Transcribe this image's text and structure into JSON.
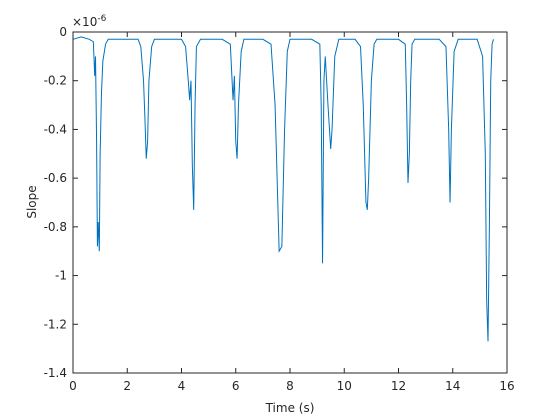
{
  "chart_data": {
    "type": "line",
    "x_label": "Time (s)",
    "y_label": "Slope",
    "y_multiplier": "×10",
    "y_exponent": "-6",
    "color": "#0072bd",
    "xlim": [
      0,
      16
    ],
    "xticks": [
      0,
      2,
      4,
      6,
      8,
      10,
      12,
      14,
      16
    ],
    "ylim": [
      -1.4,
      0
    ],
    "yticks": [
      -1.4,
      -1.2,
      -1,
      -0.8,
      -0.6,
      -0.4,
      -0.2,
      0
    ],
    "x": [
      0,
      0.3,
      0.6,
      0.75,
      0.8,
      0.83,
      0.87,
      0.9,
      0.93,
      0.97,
      1.0,
      1.05,
      1.1,
      1.2,
      1.3,
      1.5,
      2.0,
      2.4,
      2.5,
      2.6,
      2.65,
      2.7,
      2.75,
      2.8,
      2.9,
      3.0,
      3.5,
      4.0,
      4.15,
      4.25,
      4.3,
      4.35,
      4.4,
      4.45,
      4.5,
      4.55,
      4.7,
      5.5,
      5.8,
      5.9,
      5.95,
      6.0,
      6.05,
      6.1,
      6.2,
      6.3,
      7.0,
      7.3,
      7.45,
      7.55,
      7.6,
      7.7,
      7.8,
      7.9,
      8.0,
      8.8,
      9.1,
      9.15,
      9.2,
      9.25,
      9.3,
      9.4,
      9.5,
      9.55,
      9.65,
      9.8,
      10.4,
      10.6,
      10.7,
      10.8,
      10.85,
      10.9,
      11.0,
      11.1,
      11.2,
      12.0,
      12.25,
      12.3,
      12.35,
      12.4,
      12.45,
      12.5,
      12.6,
      13.5,
      13.75,
      13.85,
      13.9,
      13.95,
      14.05,
      14.2,
      14.9,
      15.1,
      15.2,
      15.25,
      15.3,
      15.35,
      15.4,
      15.45,
      15.5
    ],
    "values": [
      -0.03,
      -0.02,
      -0.03,
      -0.04,
      -0.18,
      -0.1,
      -0.45,
      -0.88,
      -0.78,
      -0.9,
      -0.5,
      -0.25,
      -0.12,
      -0.05,
      -0.03,
      -0.03,
      -0.03,
      -0.03,
      -0.06,
      -0.2,
      -0.35,
      -0.52,
      -0.45,
      -0.2,
      -0.06,
      -0.03,
      -0.03,
      -0.03,
      -0.06,
      -0.2,
      -0.28,
      -0.2,
      -0.55,
      -0.73,
      -0.3,
      -0.06,
      -0.03,
      -0.03,
      -0.05,
      -0.28,
      -0.18,
      -0.45,
      -0.52,
      -0.3,
      -0.08,
      -0.03,
      -0.03,
      -0.05,
      -0.3,
      -0.7,
      -0.9,
      -0.88,
      -0.4,
      -0.08,
      -0.03,
      -0.03,
      -0.05,
      -0.3,
      -0.95,
      -0.2,
      -0.1,
      -0.3,
      -0.48,
      -0.4,
      -0.1,
      -0.03,
      -0.03,
      -0.06,
      -0.3,
      -0.7,
      -0.73,
      -0.6,
      -0.2,
      -0.05,
      -0.03,
      -0.03,
      -0.05,
      -0.3,
      -0.62,
      -0.5,
      -0.2,
      -0.05,
      -0.03,
      -0.03,
      -0.06,
      -0.4,
      -0.7,
      -0.4,
      -0.08,
      -0.03,
      -0.03,
      -0.1,
      -0.5,
      -1.1,
      -1.27,
      -0.8,
      -0.2,
      -0.05,
      -0.03
    ]
  }
}
